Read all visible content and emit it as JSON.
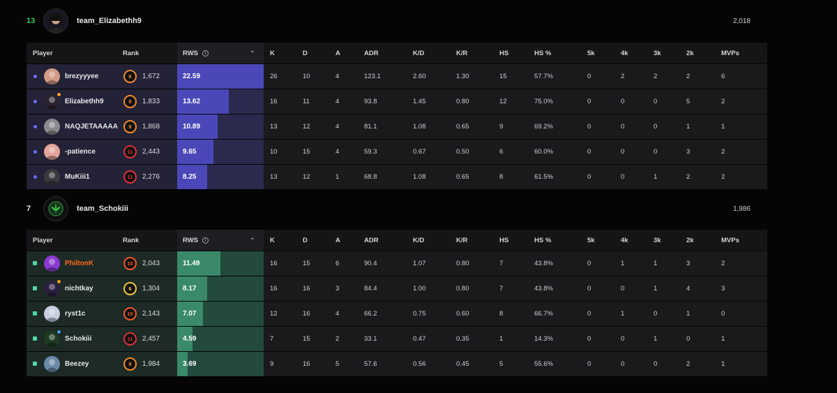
{
  "columns": {
    "player": "Player",
    "rank": "Rank",
    "rws": "RWS",
    "k": "K",
    "d": "D",
    "a": "A",
    "adr": "ADR",
    "kd": "K/D",
    "kr": "K/R",
    "hs": "HS",
    "hs_pct": "HS %",
    "k5": "5k",
    "k4": "4k",
    "k3": "3k",
    "k2": "2k",
    "mvps": "MVPs"
  },
  "teams": [
    {
      "score": "13",
      "name": "team_Elizabethh9",
      "elo": "2,018",
      "score_color": "#3ecf5a",
      "marker": "dot",
      "marker_color": "#6b6bff",
      "row_tint": "#232236",
      "rws_fill_color": "#4a48b8",
      "rws_bg_color": "#2b2a4e",
      "logo_icon": "avatar-icon",
      "players": [
        {
          "name": "brezyyyee",
          "rank": "8",
          "rank_color": "#f28a2e",
          "elo": "1,672",
          "rws": "22.59",
          "rws_frac": 1.0,
          "k": "26",
          "d": "10",
          "a": "4",
          "adr": "123.1",
          "kd": "2.60",
          "kr": "1.30",
          "hs": "15",
          "hs_pct": "57.7%",
          "k5": "0",
          "k4": "2",
          "k3": "2",
          "k2": "2",
          "mvps": "6",
          "avatar_color": "#d39a86",
          "badge": "",
          "name_color": "#e8e8ec"
        },
        {
          "name": "Elizabethh9",
          "rank": "9",
          "rank_color": "#f28a2e",
          "elo": "1,833",
          "rws": "13.62",
          "rws_frac": 0.6,
          "k": "16",
          "d": "11",
          "a": "4",
          "adr": "93.8",
          "kd": "1.45",
          "kr": "0.80",
          "hs": "12",
          "hs_pct": "75.0%",
          "k5": "0",
          "k4": "0",
          "k3": "0",
          "k2": "5",
          "mvps": "2",
          "avatar_color": "#2a2230",
          "badge": "#f0a030",
          "name_color": "#e8e8ec"
        },
        {
          "name": "NAQJETAAAAA",
          "rank": "9",
          "rank_color": "#f28a2e",
          "elo": "1,868",
          "rws": "10.89",
          "rws_frac": 0.47,
          "k": "13",
          "d": "12",
          "a": "4",
          "adr": "81.1",
          "kd": "1.08",
          "kr": "0.65",
          "hs": "9",
          "hs_pct": "69.2%",
          "k5": "0",
          "k4": "0",
          "k3": "0",
          "k2": "1",
          "mvps": "1",
          "avatar_color": "#8a8a8e",
          "badge": "",
          "name_color": "#e8e8ec"
        },
        {
          "name": "-patience",
          "rank": "11",
          "rank_color": "#e0303a",
          "elo": "2,443",
          "rws": "9.65",
          "rws_frac": 0.42,
          "k": "10",
          "d": "15",
          "a": "4",
          "adr": "59.3",
          "kd": "0.67",
          "kr": "0.50",
          "hs": "6",
          "hs_pct": "60.0%",
          "k5": "0",
          "k4": "0",
          "k3": "0",
          "k2": "3",
          "mvps": "2",
          "avatar_color": "#e2a49a",
          "badge": "",
          "name_color": "#e8e8ec"
        },
        {
          "name": "MuKiii1",
          "rank": "11",
          "rank_color": "#e0303a",
          "elo": "2,276",
          "rws": "8.25",
          "rws_frac": 0.35,
          "k": "13",
          "d": "12",
          "a": "1",
          "adr": "68.8",
          "kd": "1.08",
          "kr": "0.65",
          "hs": "8",
          "hs_pct": "61.5%",
          "k5": "0",
          "k4": "0",
          "k3": "1",
          "k2": "2",
          "mvps": "2",
          "avatar_color": "#3a3a3e",
          "badge": "",
          "name_color": "#e8e8ec"
        }
      ]
    },
    {
      "score": "7",
      "name": "team_Schokiii",
      "elo": "1,986",
      "score_color": "#e8e8ec",
      "marker": "square",
      "marker_color": "#4fd6a4",
      "row_tint": "#1d2a25",
      "rws_fill_color": "#3a8a6a",
      "rws_bg_color": "#234a3c",
      "logo_icon": "leaf-icon",
      "players": [
        {
          "name": "PhiltonK",
          "rank": "10",
          "rank_color": "#f25a2e",
          "elo": "2,043",
          "rws": "11.49",
          "rws_frac": 0.5,
          "k": "16",
          "d": "15",
          "a": "6",
          "adr": "90.4",
          "kd": "1.07",
          "kr": "0.80",
          "hs": "7",
          "hs_pct": "43.8%",
          "k5": "0",
          "k4": "1",
          "k3": "1",
          "k2": "3",
          "mvps": "2",
          "avatar_color": "#8a3ad0",
          "badge": "",
          "name_color": "#ff6a1a"
        },
        {
          "name": "nichtkay",
          "rank": "6",
          "rank_color": "#f2c83a",
          "elo": "1,304",
          "rws": "8.17",
          "rws_frac": 0.35,
          "k": "16",
          "d": "16",
          "a": "3",
          "adr": "84.4",
          "kd": "1.00",
          "kr": "0.80",
          "hs": "7",
          "hs_pct": "43.8%",
          "k5": "0",
          "k4": "0",
          "k3": "1",
          "k2": "4",
          "mvps": "3",
          "avatar_color": "#2a2040",
          "badge": "#f0a030",
          "name_color": "#e8e8ec"
        },
        {
          "name": "ryst1c",
          "rank": "10",
          "rank_color": "#f25a2e",
          "elo": "2,143",
          "rws": "7.07",
          "rws_frac": 0.3,
          "k": "12",
          "d": "16",
          "a": "4",
          "adr": "66.2",
          "kd": "0.75",
          "kr": "0.60",
          "hs": "8",
          "hs_pct": "66.7%",
          "k5": "0",
          "k4": "1",
          "k3": "0",
          "k2": "1",
          "mvps": "0",
          "avatar_color": "#c8cde0",
          "badge": "",
          "name_color": "#e8e8ec"
        },
        {
          "name": "Schokiii",
          "rank": "11",
          "rank_color": "#e0303a",
          "elo": "2,457",
          "rws": "4.59",
          "rws_frac": 0.18,
          "k": "7",
          "d": "15",
          "a": "2",
          "adr": "33.1",
          "kd": "0.47",
          "kr": "0.35",
          "hs": "1",
          "hs_pct": "14.3%",
          "k5": "0",
          "k4": "0",
          "k3": "1",
          "k2": "0",
          "mvps": "1",
          "avatar_color": "#1d3a22",
          "badge": "#4a9ef0",
          "name_color": "#e8e8ec"
        },
        {
          "name": "Beezey",
          "rank": "9",
          "rank_color": "#f28a2e",
          "elo": "1,984",
          "rws": "3.69",
          "rws_frac": 0.12,
          "k": "9",
          "d": "16",
          "a": "5",
          "adr": "57.6",
          "kd": "0.56",
          "kr": "0.45",
          "hs": "5",
          "hs_pct": "55.6%",
          "k5": "0",
          "k4": "0",
          "k3": "0",
          "k2": "2",
          "mvps": "1",
          "avatar_color": "#6a8aa8",
          "badge": "",
          "name_color": "#e8e8ec"
        }
      ]
    }
  ]
}
